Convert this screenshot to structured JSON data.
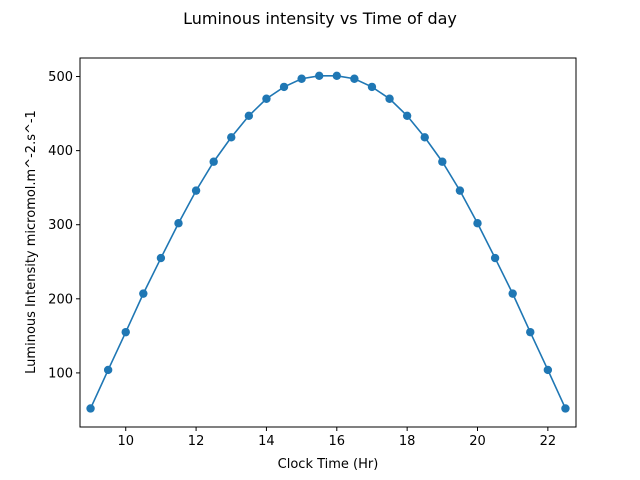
{
  "chart_data": {
    "type": "line",
    "title": "Luminous intensity vs Time of day",
    "xlabel": "Clock Time (Hr)",
    "ylabel": "Luminous Intensity micromol.m^-2.s^-1",
    "xlim": [
      8.7,
      22.8
    ],
    "ylim": [
      27,
      525
    ],
    "xticks": [
      10,
      12,
      14,
      16,
      18,
      20,
      22
    ],
    "yticks": [
      100,
      200,
      300,
      400,
      500
    ],
    "grid": false,
    "markers": true,
    "color": "#1f77b4",
    "series": [
      {
        "x": [
          9,
          9.5,
          10,
          10.5,
          11,
          11.5,
          12,
          12.5,
          13,
          13.5,
          14,
          14.5,
          15,
          15.5,
          16,
          16.5,
          17,
          17.5,
          18,
          18.5,
          19,
          19.5,
          20,
          20.5,
          21,
          21.5,
          22,
          22.5
        ],
        "y": [
          52,
          104,
          155,
          207,
          255,
          302,
          346,
          385,
          418,
          447,
          470,
          486,
          497,
          501,
          501,
          497,
          486,
          470,
          447,
          418,
          385,
          346,
          302,
          255,
          207,
          155,
          104,
          52
        ]
      }
    ]
  }
}
